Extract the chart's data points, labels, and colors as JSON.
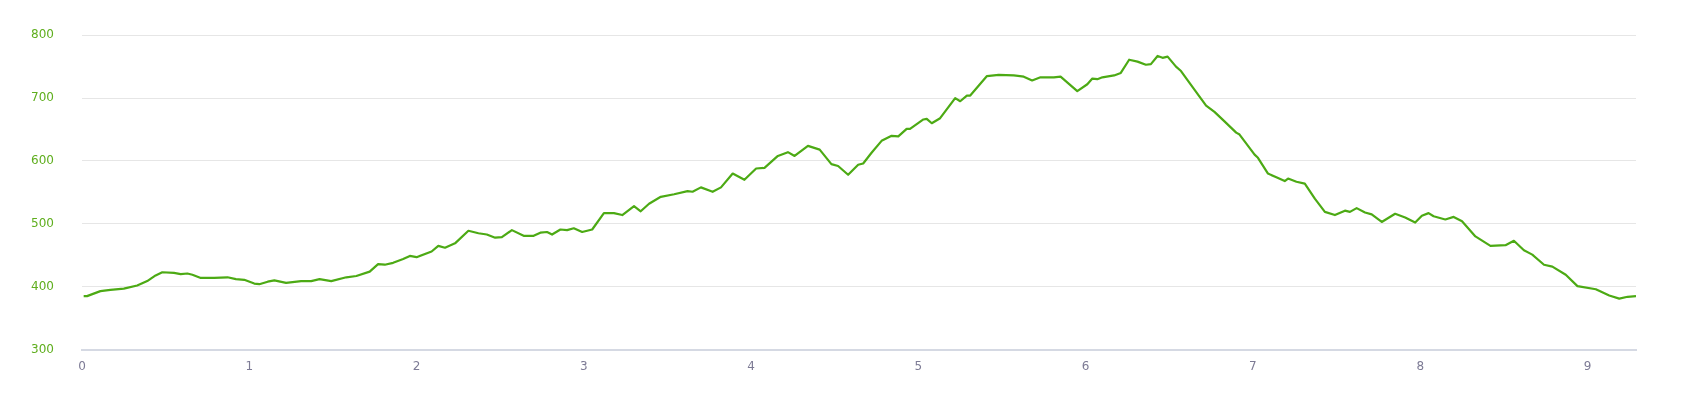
{
  "chart_data": {
    "type": "line",
    "x": [
      0.01,
      0.03,
      0.11,
      0.17,
      0.25,
      0.33,
      0.39,
      0.44,
      0.48,
      0.55,
      0.59,
      0.63,
      0.66,
      0.71,
      0.79,
      0.87,
      0.92,
      0.97,
      1.03,
      1.06,
      1.11,
      1.15,
      1.22,
      1.31,
      1.37,
      1.42,
      1.49,
      1.58,
      1.64,
      1.72,
      1.77,
      1.81,
      1.86,
      1.92,
      1.96,
      2.0,
      2.09,
      2.13,
      2.17,
      2.23,
      2.31,
      2.37,
      2.42,
      2.47,
      2.51,
      2.57,
      2.64,
      2.7,
      2.74,
      2.78,
      2.81,
      2.86,
      2.9,
      2.94,
      2.99,
      3.05,
      3.12,
      3.18,
      3.23,
      3.3,
      3.34,
      3.39,
      3.46,
      3.54,
      3.62,
      3.65,
      3.7,
      3.77,
      3.82,
      3.89,
      3.96,
      4.03,
      4.08,
      4.16,
      4.22,
      4.26,
      4.34,
      4.41,
      4.48,
      4.52,
      4.58,
      4.64,
      4.67,
      4.72,
      4.78,
      4.84,
      4.88,
      4.93,
      4.95,
      5.03,
      5.05,
      5.08,
      5.13,
      5.22,
      5.25,
      5.29,
      5.31,
      5.41,
      5.48,
      5.57,
      5.63,
      5.68,
      5.73,
      5.81,
      5.85,
      5.95,
      6.01,
      6.04,
      6.07,
      6.1,
      6.17,
      6.21,
      6.26,
      6.31,
      6.36,
      6.39,
      6.43,
      6.46,
      6.49,
      6.54,
      6.57,
      6.61,
      6.66,
      6.72,
      6.77,
      6.83,
      6.9,
      6.92,
      7.01,
      7.03,
      7.09,
      7.14,
      7.19,
      7.21,
      7.26,
      7.31,
      7.37,
      7.43,
      7.49,
      7.55,
      7.58,
      7.62,
      7.67,
      7.71,
      7.77,
      7.85,
      7.91,
      7.97,
      8.01,
      8.05,
      8.08,
      8.15,
      8.2,
      8.25,
      8.33,
      8.42,
      8.51,
      8.56,
      8.62,
      8.67,
      8.74,
      8.79,
      8.87,
      8.94,
      9.05,
      9.13,
      9.19,
      9.24,
      9.29
    ],
    "series": [
      {
        "color": "#4caa14",
        "values": [
          385,
          385,
          393,
          395,
          397,
          402,
          409,
          418,
          423,
          422,
          420,
          421,
          419,
          414,
          414,
          415,
          412,
          411,
          405,
          404,
          408,
          410,
          406,
          409,
          409,
          412,
          409,
          415,
          417,
          424,
          436,
          435,
          438,
          444,
          449,
          447,
          456,
          465,
          462,
          469,
          489,
          485,
          483,
          478,
          479,
          490,
          481,
          481,
          486,
          487,
          483,
          491,
          490,
          493,
          487,
          491,
          517,
          517,
          514,
          528,
          520,
          532,
          543,
          547,
          552,
          551,
          558,
          551,
          558,
          580,
          570,
          588,
          589,
          608,
          614,
          608,
          624,
          618,
          595,
          592,
          578,
          594,
          596,
          613,
          632,
          640,
          639,
          651,
          651,
          666,
          667,
          660,
          668,
          700,
          695,
          704,
          704,
          735,
          737,
          736,
          734,
          728,
          733,
          733,
          734,
          711,
          722,
          731,
          730,
          733,
          736,
          740,
          761,
          758,
          753,
          754,
          767,
          764,
          766,
          750,
          743,
          728,
          710,
          688,
          678,
          663,
          645,
          642,
          610,
          605,
          580,
          574,
          568,
          572,
          567,
          564,
          540,
          519,
          514,
          521,
          519,
          525,
          518,
          515,
          503,
          516,
          510,
          502,
          513,
          517,
          512,
          507,
          511,
          504,
          480,
          465,
          466,
          473,
          458,
          451,
          435,
          432,
          419,
          401,
          396,
          386,
          381,
          384,
          385
        ]
      }
    ],
    "xlim": [
      0,
      9.29
    ],
    "xticks": [
      0,
      1,
      2,
      3,
      4,
      5,
      6,
      7,
      8,
      9
    ],
    "ylim": [
      300,
      800
    ],
    "yticks": [
      300,
      400,
      500,
      600,
      700,
      800
    ],
    "grid": "y",
    "marker": "none",
    "line_style": "solid",
    "legend": false
  }
}
